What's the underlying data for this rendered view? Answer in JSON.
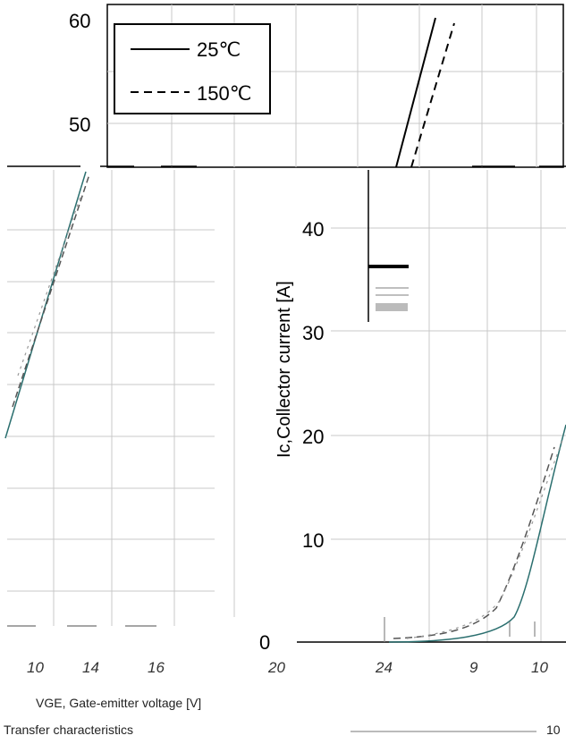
{
  "chart_data": {
    "type": "line",
    "ylabel": "Ic,Collector current [A]",
    "y_ticks": [
      "60",
      "50",
      "40",
      "30",
      "20",
      "10",
      "0"
    ],
    "y_tick_values": [
      60,
      50,
      40,
      30,
      20,
      10,
      0
    ],
    "x_tick_labels": [
      "10",
      "14",
      "16",
      "20",
      "24",
      "9",
      "10"
    ],
    "legend": [
      {
        "label": "25℃",
        "style": "solid"
      },
      {
        "label": "150℃",
        "style": "dashed"
      }
    ],
    "grid": true,
    "footer_line1": "VGE, Gate-emitter voltage [V]",
    "footer_line2": "Transfer characteristics",
    "footer_page": "10"
  }
}
